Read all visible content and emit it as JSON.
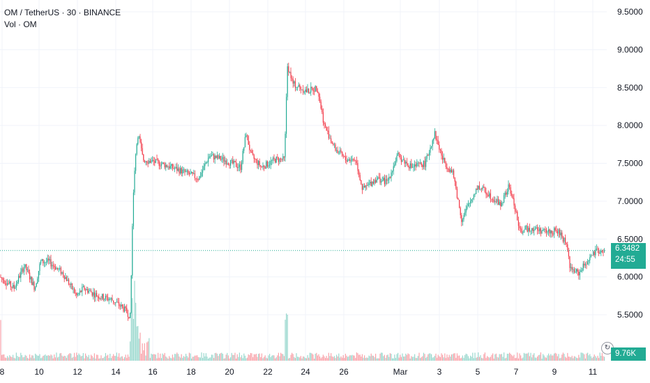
{
  "legend": {
    "symbol": "OM / TetherUS · 30 · BINANCE",
    "volume_label": "Vol · OM"
  },
  "price_axis": {
    "ticks": [
      "9.5000",
      "9.0000",
      "8.5000",
      "8.0000",
      "7.5000",
      "7.0000",
      "6.5000",
      "6.0000",
      "5.5000"
    ]
  },
  "time_axis": {
    "ticks": [
      "8",
      "10",
      "12",
      "14",
      "16",
      "18",
      "20",
      "22",
      "24",
      "26",
      "Mar",
      "3",
      "5",
      "7",
      "9",
      "11"
    ]
  },
  "last_price": {
    "value": "6.3482",
    "countdown": "24:55"
  },
  "volume_tag": "9.76K",
  "colors": {
    "up": "#22ab94",
    "down": "#f23645",
    "background": "#ffffff",
    "grid": "#f0f3fa",
    "text": "#131722"
  },
  "chart_data": {
    "type": "candlestick",
    "timeframe": "30",
    "symbol": "OM / TetherUS",
    "exchange": "BINANCE",
    "ylim": [
      5.3,
      9.6
    ],
    "x_labels": [
      "8",
      "10",
      "12",
      "14",
      "16",
      "18",
      "20",
      "22",
      "24",
      "26",
      "Mar",
      "3",
      "5",
      "7",
      "9",
      "11"
    ],
    "series": [
      {
        "name": "OM",
        "approx_close": [
          {
            "x": "8",
            "y": 6.0
          },
          {
            "x": "9",
            "y": 6.05
          },
          {
            "x": "10",
            "y": 6.2
          },
          {
            "x": "11",
            "y": 6.05
          },
          {
            "x": "12",
            "y": 5.8
          },
          {
            "x": "13",
            "y": 5.75
          },
          {
            "x": "14",
            "y": 5.6
          },
          {
            "x": "14.5",
            "y": 5.45
          },
          {
            "x": "15",
            "y": 7.0
          },
          {
            "x": "15.3",
            "y": 7.9
          },
          {
            "x": "16",
            "y": 7.55
          },
          {
            "x": "17",
            "y": 7.5
          },
          {
            "x": "18",
            "y": 7.3
          },
          {
            "x": "19",
            "y": 7.6
          },
          {
            "x": "20",
            "y": 7.5
          },
          {
            "x": "21",
            "y": 7.9
          },
          {
            "x": "21.5",
            "y": 7.5
          },
          {
            "x": "22",
            "y": 7.55
          },
          {
            "x": "23",
            "y": 8.8
          },
          {
            "x": "24",
            "y": 8.45
          },
          {
            "x": "25",
            "y": 7.8
          },
          {
            "x": "26",
            "y": 7.5
          },
          {
            "x": "27",
            "y": 7.2
          },
          {
            "x": "28",
            "y": 7.45
          },
          {
            "x": "Mar",
            "y": 7.55
          },
          {
            "x": "2",
            "y": 7.45
          },
          {
            "x": "3",
            "y": 7.9
          },
          {
            "x": "4",
            "y": 7.3
          },
          {
            "x": "5",
            "y": 6.95
          },
          {
            "x": "6",
            "y": 7.1
          },
          {
            "x": "7",
            "y": 6.6
          },
          {
            "x": "8",
            "y": 6.6
          },
          {
            "x": "9",
            "y": 6.5
          },
          {
            "x": "10",
            "y": 6.15
          },
          {
            "x": "11",
            "y": 6.3
          },
          {
            "x": "11.5",
            "y": 6.35
          }
        ]
      }
    ],
    "last_price": 6.3482,
    "volume_last": "9.76K",
    "grid": true
  }
}
